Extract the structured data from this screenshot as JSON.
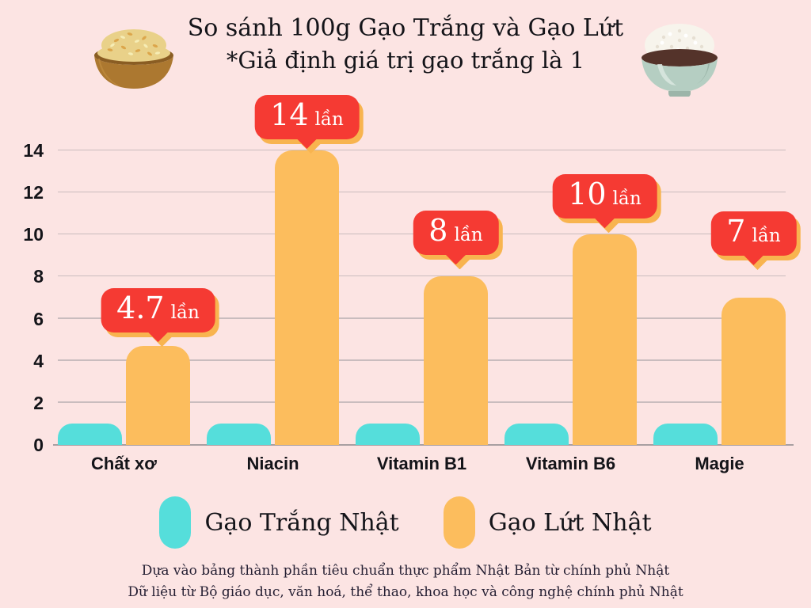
{
  "header": {
    "title_line1": "So sánh 100g Gạo Trắng và Gạo Lứt",
    "title_line2": "*Giả định giá trị gạo trắng là 1",
    "left_icon": "brown-rice-bowl-icon",
    "right_icon": "white-rice-bowl-icon"
  },
  "chart_data": {
    "type": "bar",
    "title": "So sánh 100g Gạo Trắng và Gạo Lứt",
    "subtitle": "*Giả định giá trị gạo trắng là 1",
    "categories": [
      "Chất xơ",
      "Niacin",
      "Vitamin B1",
      "Vitamin B6",
      "Magie"
    ],
    "series": [
      {
        "name": "Gạo Trắng Nhật",
        "color": "#55dedb",
        "values": [
          1,
          1,
          1,
          1,
          1
        ]
      },
      {
        "name": "Gạo Lứt Nhật",
        "color": "#fcbd5d",
        "values": [
          4.7,
          14,
          8,
          10,
          7
        ]
      }
    ],
    "badges": [
      {
        "value": "4.7",
        "unit": "lần"
      },
      {
        "value": "14",
        "unit": "lần"
      },
      {
        "value": "8",
        "unit": "lần"
      },
      {
        "value": "10",
        "unit": "lần"
      },
      {
        "value": "7",
        "unit": "lần"
      }
    ],
    "y_ticks": [
      0,
      2,
      4,
      6,
      8,
      10,
      12,
      14
    ],
    "ylim": [
      0,
      14
    ],
    "xlabel": "",
    "ylabel": "",
    "grid": true,
    "legend_position": "bottom"
  },
  "legend": {
    "items": [
      {
        "label": "Gạo Trắng Nhật",
        "color": "#55dedb"
      },
      {
        "label": "Gạo Lứt Nhật",
        "color": "#fcbd5d"
      }
    ]
  },
  "footer": {
    "line1": "Dựa vào bảng thành phần tiêu chuẩn thực phẩm Nhật Bản từ chính phủ Nhật",
    "line2": "Dữ liệu từ Bộ giáo dục, văn hoá, thể thao, khoa học và công nghệ chính phủ Nhật"
  },
  "colors": {
    "background": "#fce4e3",
    "bar-white": "#55dedb",
    "bar-brown": "#fcbd5d",
    "badge": "#f53a33",
    "badge-shadow": "#f8b44f",
    "grid": "#c9bcbe",
    "axis": "#a89fa1",
    "text": "#141419",
    "footer": "#251f33"
  }
}
